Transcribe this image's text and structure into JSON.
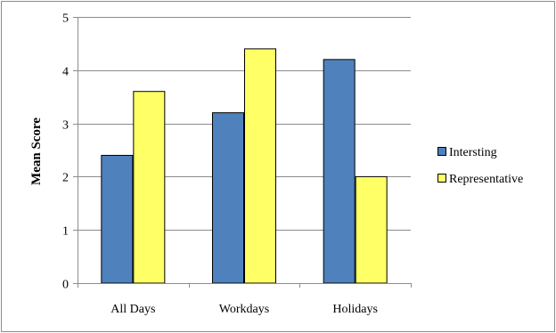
{
  "chart_data": {
    "type": "bar",
    "title": "",
    "xlabel": "",
    "ylabel": "Mean Score",
    "categories": [
      "All Days",
      "Workdays",
      "Holidays"
    ],
    "series": [
      {
        "name": "Intersting",
        "values": [
          2.4,
          3.2,
          4.2
        ],
        "color": "#4F81BD"
      },
      {
        "name": "Representative",
        "values": [
          3.6,
          4.4,
          2.0
        ],
        "color": "#FFFF66"
      }
    ],
    "ylim": [
      0,
      5
    ],
    "yticks": [
      "0",
      "1",
      "2",
      "3",
      "4",
      "5"
    ],
    "grid": true,
    "legend": "right"
  }
}
